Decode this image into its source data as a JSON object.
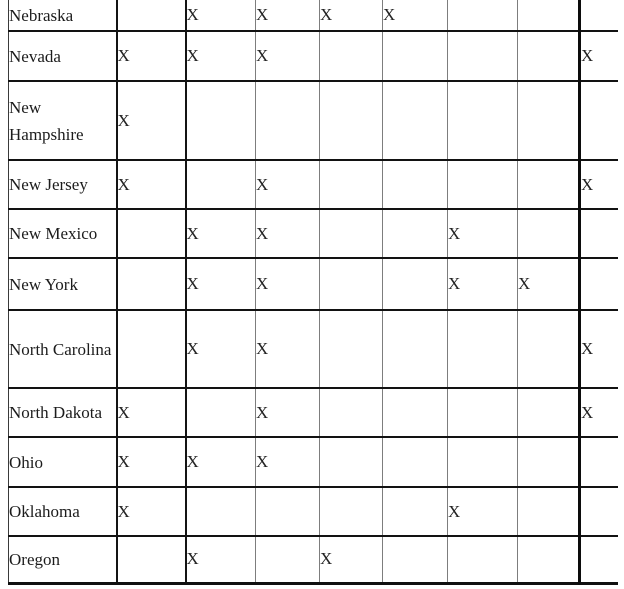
{
  "table": {
    "description": "State checklist matrix fragment",
    "mark": "X",
    "column_count": 8,
    "rows": [
      {
        "state": "Nebraska",
        "marks": [
          2,
          3,
          4,
          5
        ]
      },
      {
        "state": "Nevada",
        "marks": [
          1,
          2,
          3,
          8
        ]
      },
      {
        "state": "New Hampshire",
        "marks": [
          1
        ]
      },
      {
        "state": "New Jersey",
        "marks": [
          1,
          3,
          8
        ]
      },
      {
        "state": "New Mexico",
        "marks": [
          2,
          3,
          6
        ]
      },
      {
        "state": "New York",
        "marks": [
          2,
          3,
          6,
          7
        ]
      },
      {
        "state": "North Carolina",
        "marks": [
          2,
          3,
          8
        ]
      },
      {
        "state": "North Dakota",
        "marks": [
          1,
          3,
          8
        ]
      },
      {
        "state": "Ohio",
        "marks": [
          1,
          2,
          3
        ]
      },
      {
        "state": "Oklahoma",
        "marks": [
          1,
          6
        ]
      },
      {
        "state": "Oregon",
        "marks": [
          2,
          4
        ]
      }
    ]
  }
}
